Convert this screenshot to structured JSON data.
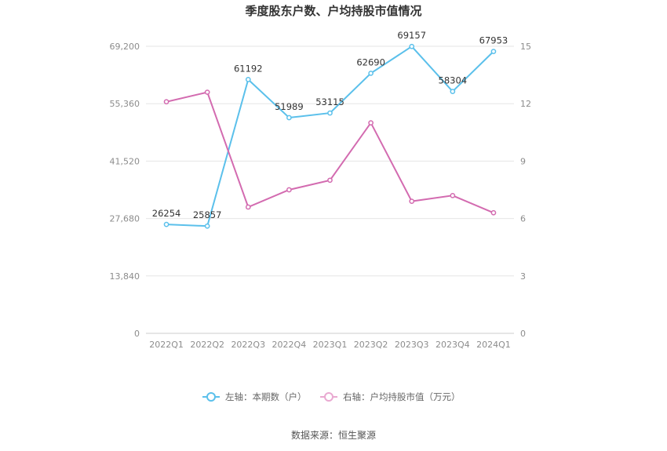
{
  "chart_data": {
    "type": "line",
    "title": "季度股东户数、户均持股市值情况",
    "categories": [
      "2022Q1",
      "2022Q2",
      "2022Q3",
      "2022Q4",
      "2023Q1",
      "2023Q2",
      "2023Q3",
      "2023Q4",
      "2024Q1"
    ],
    "left_axis": {
      "ticks": [
        "69,200",
        "55,360",
        "41,520",
        "27,680",
        "13,840",
        "0"
      ],
      "range": [
        0,
        69200
      ]
    },
    "right_axis": {
      "ticks": [
        "15",
        "12",
        "9",
        "6",
        "3",
        "0"
      ],
      "range": [
        0,
        15
      ]
    },
    "series": [
      {
        "name": "左轴：本期数（户）",
        "axis": "left",
        "color": "#5bc0eb",
        "values": [
          26254,
          25857,
          61192,
          51989,
          53115,
          62690,
          69157,
          58304,
          67953
        ],
        "labels": [
          "26254",
          "25857",
          "61192",
          "51989",
          "53115",
          "62690",
          "69157",
          "58304",
          "67953"
        ]
      },
      {
        "name": "右轴：户均持股市值（万元）",
        "axis": "right",
        "color": "#d36bb0",
        "values": [
          12.1,
          12.6,
          6.6,
          7.5,
          8.0,
          11.0,
          6.9,
          7.2,
          6.3
        ]
      }
    ],
    "grid": true,
    "legend_position": "bottom"
  },
  "source": "数据来源：恒生聚源"
}
